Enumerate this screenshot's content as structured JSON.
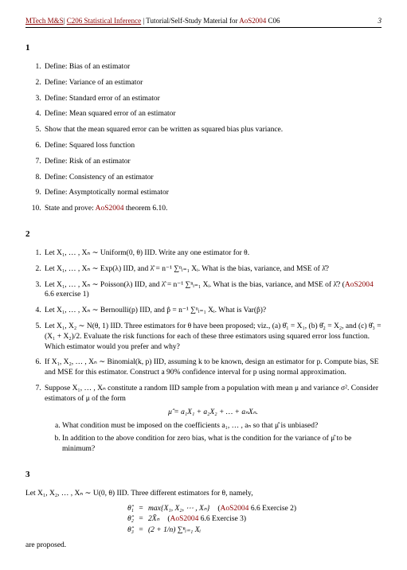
{
  "header": {
    "program": "MTech M&S",
    "course_code": "C206 Statistical Inference",
    "subtitle": "Tutorial/Self-Study Material for",
    "aos_ref": "AoS2004",
    "tail": "C06",
    "page_num": "3"
  },
  "sec1": {
    "num": "1",
    "items": [
      "Define: Bias of an estimator",
      "Define: Variance of an estimator",
      "Define: Standard error of an estimator",
      "Define: Mean squared error of an estimator",
      "Show that the mean squared error can be written as squared bias plus variance.",
      "Define: Squared loss function",
      "Define: Risk of an estimator",
      "Define: Consistency of an estimator",
      "Define: Asymptotically normal estimator"
    ],
    "item10_a": "State and prove: ",
    "item10_aos": "AoS2004",
    "item10_b": " theorem 6.10."
  },
  "sec2": {
    "num": "2",
    "q1": "Let X₁, … , Xₙ ∼ Uniform(0, θ) IID. Write any one estimator for θ.",
    "q2": "Let X₁, … , Xₙ ∼ Exp(λ) IID, and λ̂ = n⁻¹ ∑ⁿᵢ₌₁ Xᵢ. What is the bias, variance, and MSE of λ̂?",
    "q3a": "Let X₁, … , Xₙ ∼ Poisson(λ) IID, and λ̂ = n⁻¹ ∑ⁿᵢ₌₁ Xᵢ. What is the bias, variance, and MSE of λ̂? (",
    "q3_aos": "AoS2004",
    "q3b": " 6.6 exercise 1)",
    "q4": "Let X₁, … , Xₙ ∼ Bernoulli(p) IID, and p̂ = n⁻¹ ∑ⁿᵢ₌₁ Xᵢ. What is Var(p̂)?",
    "q5": "Let X₁, X₂ ∼ N(θ, 1) IID. Three estimators for θ have been proposed; viz., (a) θ̂₁ = X₁, (b) θ̂₂ = X₂, and (c) θ̂₃ = (X₁ + X₂)/2. Evaluate the risk functions for each of these three estimators using squared error loss function. Which estimator would you prefer and why?",
    "q6": "If X₁, X₂, … , Xₙ ∼ Binomial(k, p) IID, assuming k to be known, design an estimator for p. Compute bias, SE and MSE for this estimator. Construct a 90% confidence interval for p using normal approximation.",
    "q7a": "Suppose X₁, … , Xₙ constitute a random IID sample from a population with mean μ and variance σ². Consider estimators of μ of the form",
    "q7_eq": "μ̂ = a₁X₁ + a₂X₂ + … + aₙXₙ.",
    "q7_sub_a": "What condition must be imposed on the coefficients a₁, … , aₙ so that μ̂ is unbiased?",
    "q7_sub_b": "In addition to the above condition for zero bias, what is the condition for the variance of μ̂ to be minimum?"
  },
  "sec3": {
    "num": "3",
    "intro": "Let X₁, X₂, … , Xₙ ∼ U(0, θ) IID. Three different estimators for θ, namely,",
    "eq1_lhs": "θ̂₁",
    "eq1_rhs": "max{X₁, X₂, ⋯ , Xₙ}",
    "eq1_ref_a": "(",
    "eq1_aos": "AoS2004",
    "eq1_ref_b": " 6.6 Exercise 2)",
    "eq2_lhs": "θ̂₂",
    "eq2_rhs": "2X̄ₙ",
    "eq2_ref_a": "(",
    "eq2_aos": "AoS2004",
    "eq2_ref_b": " 6.6 Exercise 3)",
    "eq3_lhs": "θ̂₃",
    "eq3_rhs": "(2 + 1/n) ∑ⁿᵢ₌₁ Xᵢ",
    "outro": "are proposed."
  }
}
